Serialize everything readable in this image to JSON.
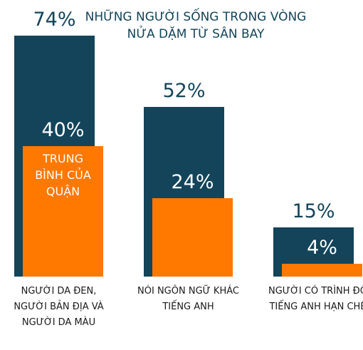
{
  "chart_data": {
    "type": "bar",
    "categories": [
      "NGƯỜI DA ĐEN, NGƯỜI BẢN ĐỊA VÀ NGƯỜI DA MÀU",
      "NÓI NGÔN NGỮ KHÁC TIẾNG ANH",
      "NGƯỜI CÓ TRÌNH ĐỘ TIẾNG ANH HẠN CHẾ"
    ],
    "series": [
      {
        "name": "NHỮNG NGƯỜI SỐNG TRONG VÒNG NỬA DẶM TỪ SÂN BAY",
        "color": "#13445a",
        "values": [
          74,
          52,
          15
        ],
        "value_labels": [
          "74%",
          "52%",
          "15%"
        ]
      },
      {
        "name": "TRUNG BÌNH CỦA QUẬN",
        "color": "#ff7800",
        "values": [
          40,
          24,
          4
        ],
        "value_labels": [
          "40%",
          "24%",
          "4%"
        ]
      }
    ]
  }
}
